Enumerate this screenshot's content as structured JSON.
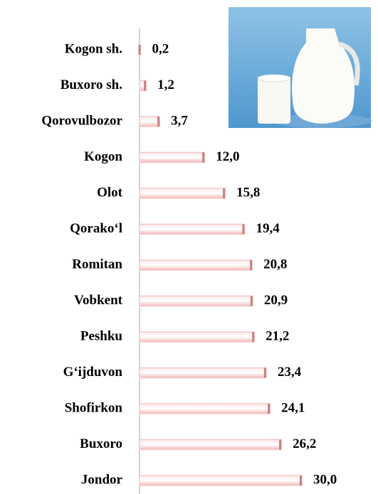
{
  "chart_data": {
    "type": "bar",
    "orientation": "horizontal",
    "categories": [
      "Kogon sh.",
      "Buxoro sh.",
      "Qorovulbozor",
      "Kogon",
      "Olot",
      "Qorako‘l",
      "Romitan",
      "Vobkent",
      "Peshku",
      "G‘ijduvon",
      "Shofirkon",
      "Buxoro",
      "Jondor"
    ],
    "values": [
      0.2,
      1.2,
      3.7,
      12.0,
      15.8,
      19.4,
      20.8,
      20.9,
      21.2,
      23.4,
      24.1,
      26.2,
      30.0
    ],
    "value_labels": [
      "0,2",
      "1,2",
      "3,7",
      "12,0",
      "15,8",
      "19,4",
      "20,8",
      "20,9",
      "21,2",
      "23,4",
      "24,1",
      "26,2",
      "30,0"
    ],
    "color": "#f4c7c6",
    "xlim": [
      0,
      40
    ]
  }
}
